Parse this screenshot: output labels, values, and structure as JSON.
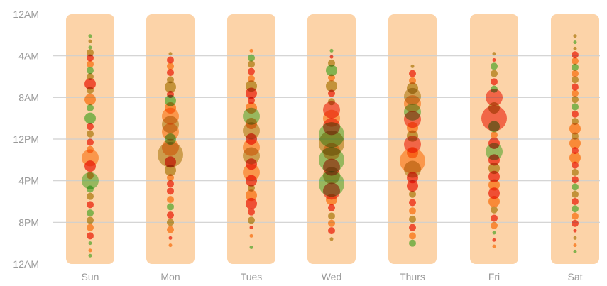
{
  "chart_data": {
    "type": "scatter",
    "title": "",
    "xlabel": "",
    "ylabel": "",
    "categories": [
      "Sun",
      "Mon",
      "Tues",
      "Wed",
      "Thurs",
      "Fri",
      "Sat"
    ],
    "y_ticks": [
      "12AM",
      "4AM",
      "8AM",
      "12PM",
      "4PM",
      "8PM",
      "12AM"
    ],
    "y_range_hours": [
      0,
      24
    ],
    "grid": true,
    "colors": {
      "column_background": "#fcd3a8",
      "gridline": "#cfcfcf",
      "red": "#ee2a12",
      "orange": "#fb8a1c",
      "green": "#5cc94a",
      "olive": "#b3961e",
      "tick_text": "#9a9a9a"
    },
    "series": [
      {
        "day": "Sun",
        "points": [
          [
            2.1,
            1,
            "green"
          ],
          [
            2.6,
            1,
            "olive"
          ],
          [
            3.2,
            1,
            "green"
          ],
          [
            3.7,
            2,
            "olive"
          ],
          [
            4.2,
            2,
            "red"
          ],
          [
            4.8,
            2,
            "orange"
          ],
          [
            5.4,
            2,
            "green"
          ],
          [
            6.0,
            2,
            "olive"
          ],
          [
            6.7,
            3,
            "red"
          ],
          [
            7.3,
            2,
            "olive"
          ],
          [
            8.2,
            3,
            "orange"
          ],
          [
            9.0,
            2,
            "green"
          ],
          [
            10.0,
            3,
            "green"
          ],
          [
            10.8,
            2,
            "red"
          ],
          [
            11.5,
            2,
            "olive"
          ],
          [
            12.3,
            2,
            "red"
          ],
          [
            13.0,
            2,
            "orange"
          ],
          [
            13.8,
            4,
            "orange"
          ],
          [
            14.6,
            3,
            "red"
          ],
          [
            15.5,
            2,
            "orange"
          ],
          [
            16.0,
            4,
            "green"
          ],
          [
            16.8,
            2,
            "green"
          ],
          [
            17.5,
            2,
            "olive"
          ],
          [
            18.3,
            2,
            "red"
          ],
          [
            19.1,
            2,
            "green"
          ],
          [
            19.8,
            2,
            "olive"
          ],
          [
            20.5,
            2,
            "orange"
          ],
          [
            21.3,
            2,
            "red"
          ],
          [
            22.0,
            1,
            "green"
          ],
          [
            22.7,
            1,
            "orange"
          ],
          [
            23.2,
            1,
            "green"
          ]
        ]
      },
      {
        "day": "Mon",
        "points": [
          [
            3.8,
            1,
            "olive"
          ],
          [
            4.4,
            2,
            "red"
          ],
          [
            5.0,
            2,
            "orange"
          ],
          [
            5.6,
            2,
            "red"
          ],
          [
            6.3,
            2,
            "olive"
          ],
          [
            7.0,
            3,
            "olive"
          ],
          [
            7.7,
            2,
            "red"
          ],
          [
            8.3,
            3,
            "green"
          ],
          [
            9.0,
            3,
            "orange"
          ],
          [
            9.8,
            4,
            "orange"
          ],
          [
            10.6,
            4,
            "olive"
          ],
          [
            11.3,
            4,
            "orange"
          ],
          [
            12.0,
            3,
            "green"
          ],
          [
            12.8,
            4,
            "orange"
          ],
          [
            13.5,
            5,
            "olive"
          ],
          [
            14.2,
            3,
            "red"
          ],
          [
            15.0,
            3,
            "olive"
          ],
          [
            15.7,
            2,
            "orange"
          ],
          [
            16.3,
            2,
            "red"
          ],
          [
            17.0,
            2,
            "red"
          ],
          [
            17.8,
            2,
            "orange"
          ],
          [
            18.5,
            2,
            "green"
          ],
          [
            19.3,
            2,
            "red"
          ],
          [
            20.0,
            2,
            "olive"
          ],
          [
            20.7,
            2,
            "orange"
          ],
          [
            21.5,
            1,
            "red"
          ],
          [
            22.2,
            1,
            "orange"
          ]
        ]
      },
      {
        "day": "Tues",
        "points": [
          [
            3.5,
            1,
            "orange"
          ],
          [
            4.2,
            2,
            "green"
          ],
          [
            4.8,
            2,
            "olive"
          ],
          [
            5.5,
            2,
            "red"
          ],
          [
            6.2,
            2,
            "orange"
          ],
          [
            6.9,
            3,
            "olive"
          ],
          [
            7.6,
            3,
            "red"
          ],
          [
            8.3,
            2,
            "red"
          ],
          [
            9.0,
            3,
            "orange"
          ],
          [
            9.8,
            4,
            "green"
          ],
          [
            10.5,
            3,
            "orange"
          ],
          [
            11.2,
            4,
            "olive"
          ],
          [
            12.0,
            3,
            "red"
          ],
          [
            12.8,
            4,
            "orange"
          ],
          [
            13.6,
            4,
            "olive"
          ],
          [
            14.4,
            3,
            "red"
          ],
          [
            15.2,
            4,
            "orange"
          ],
          [
            16.0,
            3,
            "red"
          ],
          [
            16.7,
            2,
            "olive"
          ],
          [
            17.4,
            3,
            "orange"
          ],
          [
            18.2,
            3,
            "red"
          ],
          [
            19.0,
            2,
            "red"
          ],
          [
            19.8,
            2,
            "olive"
          ],
          [
            20.5,
            1,
            "red"
          ],
          [
            21.3,
            1,
            "orange"
          ],
          [
            22.4,
            1,
            "green"
          ]
        ]
      },
      {
        "day": "Wed",
        "points": [
          [
            3.5,
            1,
            "green"
          ],
          [
            4.1,
            1,
            "red"
          ],
          [
            4.7,
            2,
            "olive"
          ],
          [
            5.4,
            3,
            "green"
          ],
          [
            6.1,
            2,
            "orange"
          ],
          [
            6.9,
            3,
            "olive"
          ],
          [
            7.6,
            2,
            "red"
          ],
          [
            8.4,
            2,
            "olive"
          ],
          [
            9.2,
            4,
            "red"
          ],
          [
            10.0,
            4,
            "orange"
          ],
          [
            10.8,
            4,
            "red"
          ],
          [
            11.6,
            5,
            "green"
          ],
          [
            12.4,
            5,
            "olive"
          ],
          [
            13.2,
            4,
            "orange"
          ],
          [
            14.0,
            5,
            "green"
          ],
          [
            14.7,
            4,
            "red"
          ],
          [
            15.5,
            4,
            "olive"
          ],
          [
            16.3,
            5,
            "green"
          ],
          [
            17.0,
            4,
            "red"
          ],
          [
            17.8,
            3,
            "orange"
          ],
          [
            18.6,
            2,
            "red"
          ],
          [
            19.4,
            2,
            "olive"
          ],
          [
            20.1,
            2,
            "orange"
          ],
          [
            20.8,
            2,
            "red"
          ],
          [
            21.6,
            1,
            "olive"
          ]
        ]
      },
      {
        "day": "Thurs",
        "points": [
          [
            5.0,
            1,
            "olive"
          ],
          [
            5.7,
            2,
            "red"
          ],
          [
            6.4,
            2,
            "orange"
          ],
          [
            7.1,
            3,
            "olive"
          ],
          [
            7.9,
            4,
            "olive"
          ],
          [
            8.6,
            4,
            "orange"
          ],
          [
            9.4,
            4,
            "green"
          ],
          [
            10.1,
            4,
            "red"
          ],
          [
            10.9,
            3,
            "orange"
          ],
          [
            11.7,
            3,
            "olive"
          ],
          [
            12.5,
            4,
            "red"
          ],
          [
            13.3,
            3,
            "orange"
          ],
          [
            14.1,
            5,
            "orange"
          ],
          [
            14.9,
            4,
            "olive"
          ],
          [
            15.7,
            3,
            "red"
          ],
          [
            16.5,
            3,
            "red"
          ],
          [
            17.3,
            2,
            "olive"
          ],
          [
            18.1,
            2,
            "red"
          ],
          [
            18.9,
            2,
            "orange"
          ],
          [
            19.7,
            2,
            "olive"
          ],
          [
            20.5,
            2,
            "red"
          ],
          [
            21.3,
            2,
            "orange"
          ],
          [
            22.0,
            2,
            "green"
          ]
        ]
      },
      {
        "day": "Fri",
        "points": [
          [
            3.8,
            1,
            "olive"
          ],
          [
            4.4,
            1,
            "red"
          ],
          [
            5.0,
            2,
            "green"
          ],
          [
            5.7,
            2,
            "olive"
          ],
          [
            6.5,
            2,
            "red"
          ],
          [
            7.2,
            2,
            "green"
          ],
          [
            8.0,
            4,
            "red"
          ],
          [
            9.0,
            3,
            "olive"
          ],
          [
            10.0,
            5,
            "red"
          ],
          [
            10.8,
            3,
            "green"
          ],
          [
            11.6,
            2,
            "orange"
          ],
          [
            12.4,
            3,
            "red"
          ],
          [
            13.2,
            4,
            "green"
          ],
          [
            14.0,
            3,
            "red"
          ],
          [
            14.8,
            3,
            "olive"
          ],
          [
            15.6,
            3,
            "red"
          ],
          [
            16.4,
            3,
            "orange"
          ],
          [
            17.2,
            3,
            "red"
          ],
          [
            18.0,
            3,
            "orange"
          ],
          [
            18.8,
            2,
            "olive"
          ],
          [
            19.6,
            2,
            "red"
          ],
          [
            20.3,
            2,
            "orange"
          ],
          [
            21.0,
            1,
            "green"
          ],
          [
            21.7,
            1,
            "red"
          ],
          [
            22.3,
            1,
            "orange"
          ]
        ]
      },
      {
        "day": "Sat",
        "points": [
          [
            2.1,
            1,
            "olive"
          ],
          [
            2.7,
            1,
            "green"
          ],
          [
            3.3,
            1,
            "olive"
          ],
          [
            3.9,
            2,
            "red"
          ],
          [
            4.5,
            2,
            "orange"
          ],
          [
            5.1,
            2,
            "green"
          ],
          [
            5.7,
            2,
            "orange"
          ],
          [
            6.3,
            2,
            "olive"
          ],
          [
            7.0,
            2,
            "red"
          ],
          [
            7.6,
            2,
            "orange"
          ],
          [
            8.2,
            2,
            "olive"
          ],
          [
            8.9,
            2,
            "green"
          ],
          [
            9.6,
            2,
            "red"
          ],
          [
            10.3,
            2,
            "olive"
          ],
          [
            11.0,
            3,
            "orange"
          ],
          [
            11.7,
            2,
            "olive"
          ],
          [
            12.4,
            3,
            "orange"
          ],
          [
            13.1,
            2,
            "red"
          ],
          [
            13.8,
            3,
            "orange"
          ],
          [
            14.5,
            2,
            "red"
          ],
          [
            15.2,
            2,
            "olive"
          ],
          [
            15.9,
            2,
            "red"
          ],
          [
            16.6,
            2,
            "green"
          ],
          [
            17.3,
            2,
            "olive"
          ],
          [
            18.0,
            2,
            "red"
          ],
          [
            18.7,
            2,
            "green"
          ],
          [
            19.4,
            2,
            "orange"
          ],
          [
            20.1,
            2,
            "red"
          ],
          [
            20.8,
            1,
            "red"
          ],
          [
            21.5,
            1,
            "olive"
          ],
          [
            22.2,
            1,
            "orange"
          ],
          [
            22.8,
            1,
            "green"
          ]
        ]
      }
    ]
  }
}
